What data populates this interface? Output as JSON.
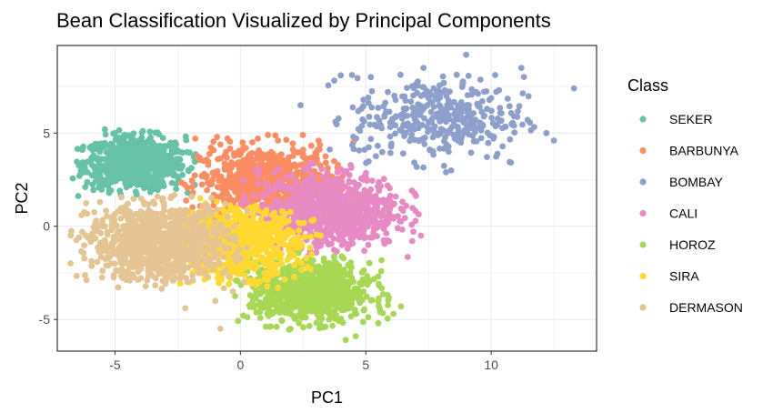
{
  "chart_data": {
    "type": "scatter",
    "title": "Bean Classification Visualized by Principal Components",
    "xlabel": "PC1",
    "ylabel": "PC2",
    "xlim": [
      -7.3,
      14.2
    ],
    "ylim": [
      -6.7,
      9.7
    ],
    "xticks": [
      -5,
      0,
      5,
      10
    ],
    "yticks": [
      -5,
      0,
      5
    ],
    "grid": true,
    "legend": {
      "title": "Class",
      "position": "right"
    },
    "series": [
      {
        "name": "SEKER",
        "color": "#66c2a5",
        "cluster": {
          "cx": -4.2,
          "cy": 3.4,
          "sx": 1.0,
          "sy": 0.7,
          "n": 750
        },
        "points": [
          [
            -6.3,
            4.1
          ],
          [
            -5.4,
            5.2
          ],
          [
            -5.0,
            5.0
          ],
          [
            -4.6,
            4.9
          ],
          [
            -3.5,
            4.5
          ],
          [
            -2.7,
            3.2
          ],
          [
            -2.1,
            1.8
          ]
        ]
      },
      {
        "name": "BARBUNYA",
        "color": "#fc8d62",
        "cluster": {
          "cx": 1.0,
          "cy": 2.3,
          "sx": 1.3,
          "sy": 1.0,
          "n": 700
        },
        "points": [
          [
            -1.8,
            4.7
          ],
          [
            1.1,
            4.9
          ],
          [
            1.5,
            4.6
          ],
          [
            2.5,
            4.1
          ],
          [
            4.5,
            4.5
          ],
          [
            -0.9,
            3.6
          ],
          [
            1.9,
            0.8
          ]
        ]
      },
      {
        "name": "BOMBAY",
        "color": "#8da0cb",
        "cluster": {
          "cx": 7.9,
          "cy": 5.8,
          "sx": 1.7,
          "sy": 1.1,
          "n": 380
        },
        "points": [
          [
            2.4,
            6.5
          ],
          [
            4.0,
            8.1
          ],
          [
            5.2,
            8.0
          ],
          [
            7.3,
            8.5
          ],
          [
            9.0,
            9.2
          ],
          [
            11.2,
            8.5
          ],
          [
            12.2,
            5.0
          ],
          [
            12.5,
            4.6
          ],
          [
            13.3,
            7.4
          ],
          [
            4.5,
            4.8
          ],
          [
            8.2,
            2.9
          ],
          [
            5.1,
            6.9
          ]
        ]
      },
      {
        "name": "CALI",
        "color": "#e78ac3",
        "cluster": {
          "cx": 3.5,
          "cy": 0.9,
          "sx": 1.4,
          "sy": 1.0,
          "n": 800
        },
        "points": [
          [
            6.0,
            1.2
          ],
          [
            5.6,
            0.2
          ],
          [
            7.2,
            -0.5
          ],
          [
            5.1,
            -1.0
          ],
          [
            4.9,
            2.5
          ],
          [
            2.7,
            -1.6
          ]
        ]
      },
      {
        "name": "HOROZ",
        "color": "#a6d854",
        "cluster": {
          "cx": 2.8,
          "cy": -3.5,
          "sx": 1.2,
          "sy": 0.8,
          "n": 850
        },
        "points": [
          [
            6.4,
            -4.3
          ],
          [
            6.1,
            -4.7
          ],
          [
            5.5,
            -5.2
          ],
          [
            4.6,
            -5.9
          ],
          [
            4.2,
            -6.1
          ],
          [
            2.0,
            -5.5
          ],
          [
            0.4,
            -2.8
          ],
          [
            1.5,
            -4.5
          ],
          [
            5.5,
            -2.7
          ]
        ]
      },
      {
        "name": "SIRA",
        "color": "#ffd92f",
        "cluster": {
          "cx": -0.3,
          "cy": -0.9,
          "sx": 1.3,
          "sy": 0.9,
          "n": 800
        },
        "points": [
          [
            -1.6,
            1.5
          ],
          [
            2.8,
            -2.3
          ],
          [
            1.5,
            -3.3
          ],
          [
            3.2,
            -0.5
          ]
        ]
      },
      {
        "name": "DERMASON",
        "color": "#e5c494",
        "cluster": {
          "cx": -3.2,
          "cy": -0.9,
          "sx": 1.4,
          "sy": 1.0,
          "n": 950
        },
        "points": [
          [
            -5.6,
            1.3
          ],
          [
            -5.4,
            0.0
          ],
          [
            -0.8,
            -5.5
          ],
          [
            -1.0,
            -4.0
          ],
          [
            -2.2,
            -4.4
          ],
          [
            -0.3,
            -3.5
          ],
          [
            -4.7,
            -1.9
          ]
        ]
      }
    ]
  }
}
